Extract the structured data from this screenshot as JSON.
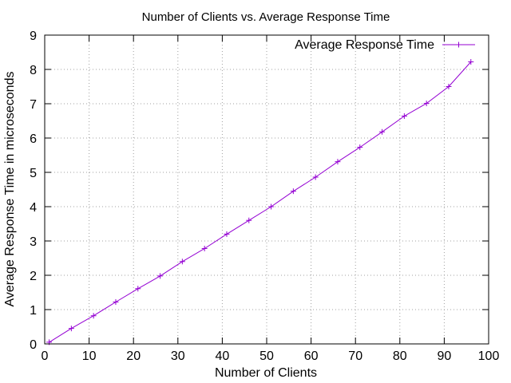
{
  "chart_data": {
    "type": "line",
    "title": "Number of Clients vs. Average Response Time",
    "xlabel": "Number of Clients",
    "ylabel": "Average Response Time in microseconds",
    "xlim": [
      0,
      100
    ],
    "ylim": [
      0,
      9
    ],
    "xticks": [
      0,
      10,
      20,
      30,
      40,
      50,
      60,
      70,
      80,
      90,
      100
    ],
    "yticks": [
      0,
      1,
      2,
      3,
      4,
      5,
      6,
      7,
      8,
      9
    ],
    "grid": true,
    "legend_position": "top-right",
    "series": [
      {
        "name": "Average Response Time",
        "color": "#9400d3",
        "marker": "plus",
        "x": [
          1,
          6,
          11,
          16,
          21,
          26,
          31,
          36,
          41,
          46,
          51,
          56,
          61,
          66,
          71,
          76,
          81,
          86,
          91,
          96
        ],
        "y": [
          0.05,
          0.45,
          0.82,
          1.22,
          1.61,
          1.98,
          2.4,
          2.78,
          3.2,
          3.6,
          4.0,
          4.45,
          4.86,
          5.31,
          5.73,
          6.18,
          6.64,
          7.01,
          7.5,
          8.22
        ]
      }
    ]
  }
}
